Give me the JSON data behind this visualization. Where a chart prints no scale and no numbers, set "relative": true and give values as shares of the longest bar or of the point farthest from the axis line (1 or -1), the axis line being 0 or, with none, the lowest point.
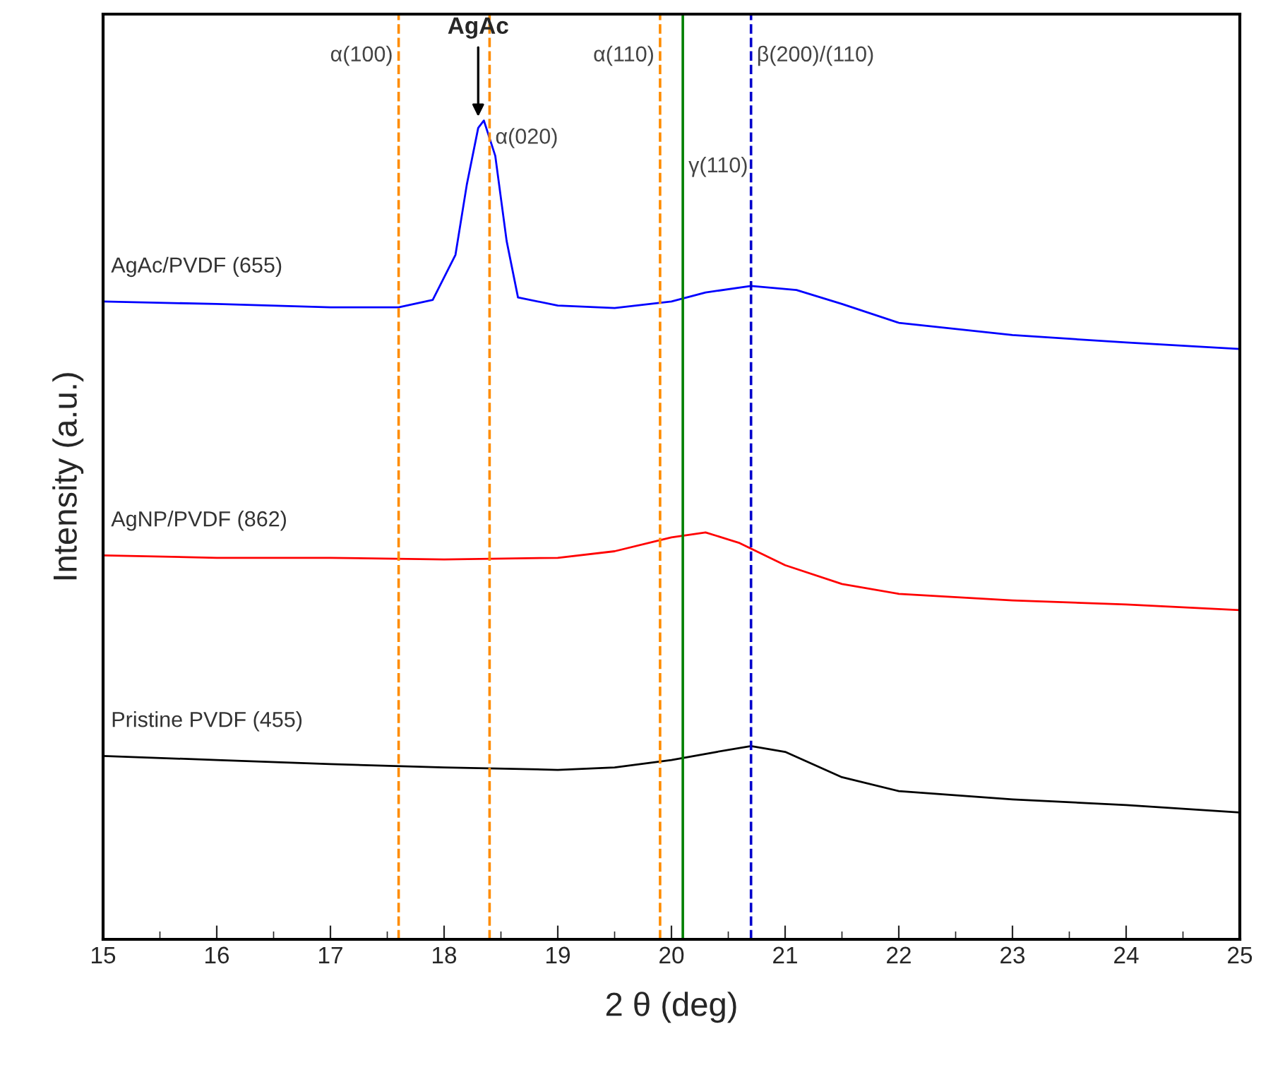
{
  "chart_data": {
    "type": "line",
    "xlabel": "2 θ (deg)",
    "ylabel": "Intensity (a.u.)",
    "relative": true,
    "xlim": [
      15,
      25
    ],
    "xticks": [
      15,
      16,
      17,
      18,
      19,
      20,
      21,
      22,
      23,
      24,
      25
    ],
    "tick_labels": "x",
    "grid": false,
    "legend": false,
    "marker": "none",
    "line_style": "solid",
    "series": [
      {
        "name": "AgAc/PVDF (655)",
        "color": "#0000ff",
        "x": [
          15,
          16,
          17,
          17.6,
          17.9,
          18.1,
          18.2,
          18.3,
          18.35,
          18.45,
          18.55,
          18.65,
          19,
          19.5,
          20,
          20.3,
          20.7,
          21.1,
          21.5,
          22,
          23,
          24,
          25
        ],
        "values": [
          0.779,
          0.776,
          0.772,
          0.772,
          0.781,
          0.836,
          0.922,
          0.991,
          1.0,
          0.957,
          0.853,
          0.784,
          0.774,
          0.771,
          0.779,
          0.79,
          0.798,
          0.793,
          0.776,
          0.753,
          0.738,
          0.729,
          0.721
        ]
      },
      {
        "name": "AgNP/PVDF (862)",
        "color": "#ff0000",
        "x": [
          15,
          16,
          17,
          18,
          19,
          19.5,
          20,
          20.3,
          20.6,
          21,
          21.5,
          22,
          23,
          24,
          25
        ],
        "values": [
          0.469,
          0.466,
          0.466,
          0.464,
          0.466,
          0.474,
          0.491,
          0.497,
          0.484,
          0.457,
          0.434,
          0.422,
          0.414,
          0.409,
          0.402
        ]
      },
      {
        "name": "Pristine PVDF (455)",
        "color": "#000000",
        "x": [
          15,
          16,
          17,
          18,
          19,
          19.5,
          20,
          20.4,
          20.7,
          21,
          21.5,
          22,
          23,
          24,
          25
        ],
        "values": [
          0.224,
          0.219,
          0.214,
          0.21,
          0.207,
          0.21,
          0.219,
          0.229,
          0.236,
          0.229,
          0.198,
          0.181,
          0.171,
          0.164,
          0.155
        ]
      }
    ],
    "ref_lines": [
      {
        "axis": "x",
        "value": 17.6,
        "label": "α(100)",
        "color": "#ff8c00",
        "line_style": "dashed"
      },
      {
        "axis": "x",
        "value": 18.4,
        "label": "α(020)",
        "color": "#ff8c00",
        "line_style": "dashed"
      },
      {
        "axis": "x",
        "value": 19.9,
        "label": "α(110)",
        "color": "#ff8c00",
        "line_style": "dashed"
      },
      {
        "axis": "x",
        "value": 20.1,
        "label": "γ(110)",
        "color": "#008000",
        "line_style": "solid"
      },
      {
        "axis": "x",
        "value": 20.7,
        "label": "β(200)/(110)",
        "color": "#0000cc",
        "line_style": "dashed"
      }
    ],
    "annotations": [
      {
        "text": "AgAc",
        "x": 18.3,
        "y": 1.0
      }
    ]
  }
}
